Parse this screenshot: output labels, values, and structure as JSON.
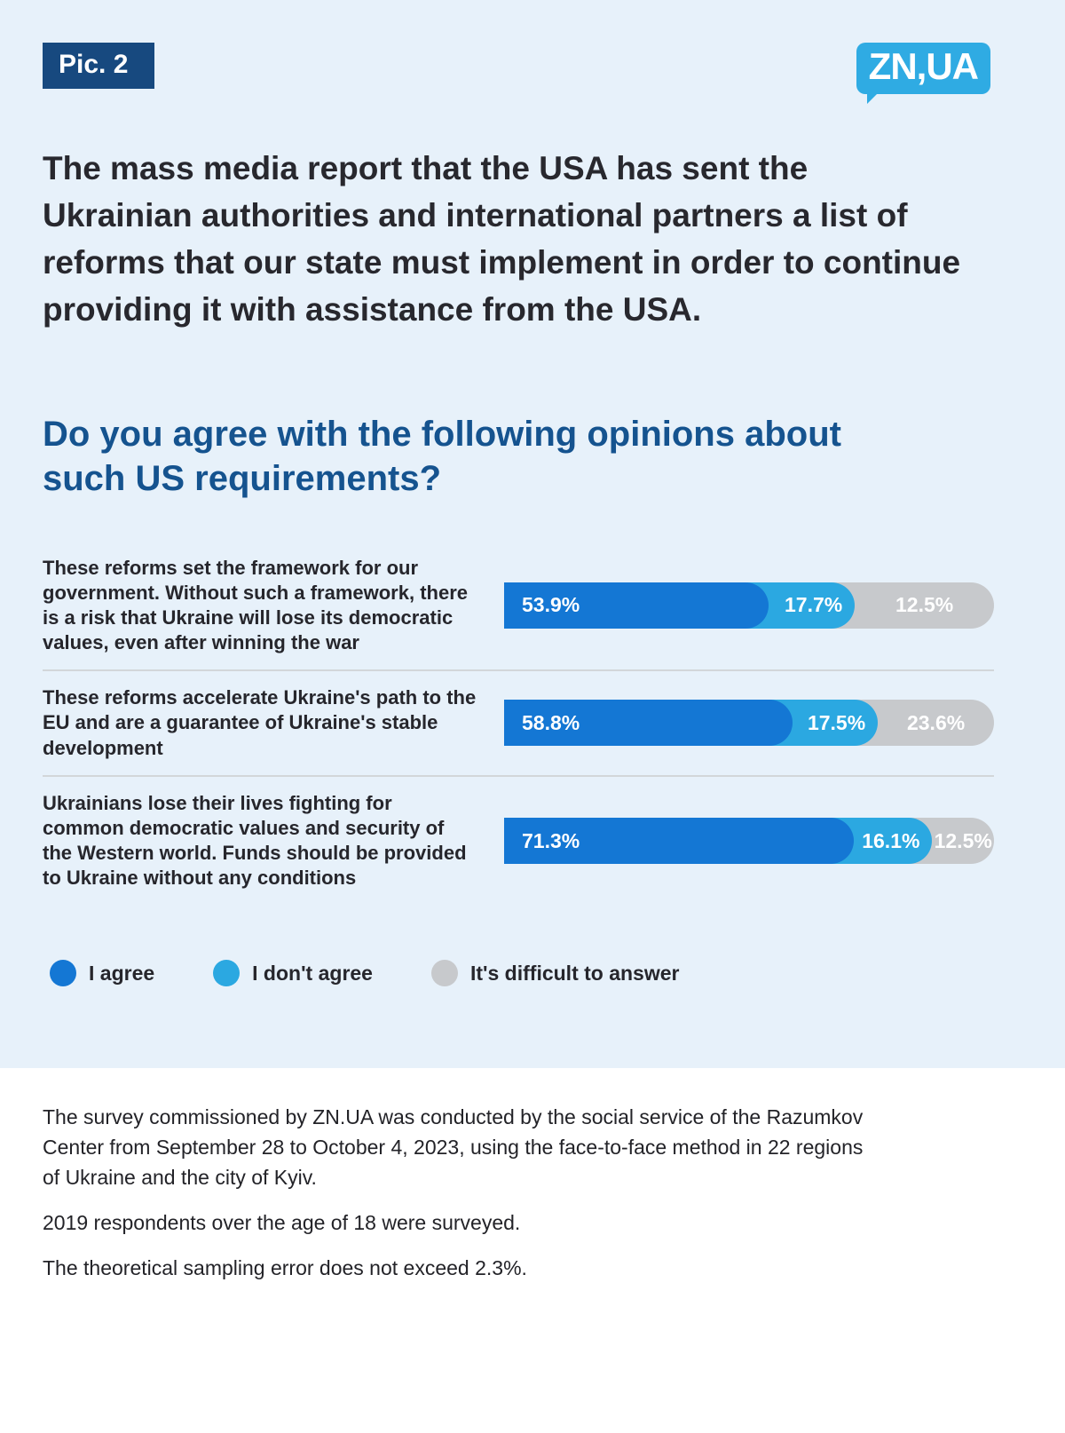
{
  "header": {
    "badge": "Pic. 2",
    "logo": "ZN,UA"
  },
  "intro": {
    "heading": "The mass media report that the USA has sent the Ukrainian authorities and international partners a list of reforms that our state must implement in order to continue providing it with assistance from the USA.",
    "question": "Do you agree with the following opinions about such US requirements?"
  },
  "chart_data": {
    "type": "bar",
    "orientation": "horizontal-stacked",
    "value_unit": "%",
    "legend": [
      {
        "label": "I agree",
        "color": "#1477d4"
      },
      {
        "label": "I don't agree",
        "color": "#2ba8e1"
      },
      {
        "label": "It's difficult to answer",
        "color": "#c7c9cc"
      }
    ],
    "rows": [
      {
        "label": "These reforms set the framework for our government. Without such a framework, there is a risk that Ukraine will lose its democratic values, even after winning the war",
        "values": [
          53.9,
          17.7,
          12.5
        ],
        "display": [
          "53.9%",
          "17.7%",
          "12.5%"
        ]
      },
      {
        "label": "These reforms accelerate Ukraine's path to the EU and are a guarantee of Ukraine's stable development",
        "values": [
          58.8,
          17.5,
          23.6
        ],
        "display": [
          "58.8%",
          "17.5%",
          "23.6%"
        ]
      },
      {
        "label": "Ukrainians lose their lives fighting for common democratic values and security of the Western world. Funds should be provided to Ukraine without any conditions",
        "values": [
          71.3,
          16.1,
          12.5
        ],
        "display": [
          "71.3%",
          "16.1%",
          "12.5%"
        ]
      }
    ]
  },
  "footer": {
    "p1": "The survey commissioned by ZN.UA was conducted by the social service of the Razumkov Center from September 28 to October 4, 2023, using the face-to-face method in 22 regions of Ukraine and the city of Kyiv.",
    "p2": "2019 respondents over the age of 18 were surveyed.",
    "p3": "The theoretical sampling error does not exceed 2.3%."
  }
}
